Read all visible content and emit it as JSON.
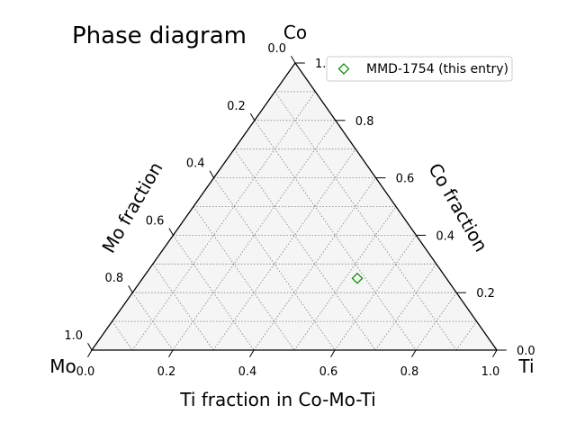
{
  "chart_data": {
    "type": "scatter",
    "subtype": "ternary",
    "title": "Phase diagram",
    "vertices": {
      "top": "Co",
      "left": "Mo",
      "right": "Ti"
    },
    "axis_labels": {
      "bottom": "Ti fraction in Co-Mo-Ti",
      "left": "Mo fraction",
      "right": "Co fraction"
    },
    "ticks": {
      "bottom": [
        "0.0",
        "0.2",
        "0.4",
        "0.6",
        "0.8",
        "1.0"
      ],
      "left": [
        "0.0",
        "0.2",
        "0.4",
        "0.6",
        "0.8",
        "1.0"
      ],
      "right": [
        "0.0",
        "0.2",
        "0.4",
        "0.6",
        "0.8",
        "1.0"
      ]
    },
    "grid": true,
    "grid_step": 0.1,
    "legend_position": "top-right",
    "series": [
      {
        "name": "MMD-1754 (this entry)",
        "marker": "diamond",
        "color": "#008000",
        "points": [
          {
            "Ti": 0.53,
            "Co": 0.25,
            "Mo": 0.22
          }
        ]
      }
    ]
  }
}
